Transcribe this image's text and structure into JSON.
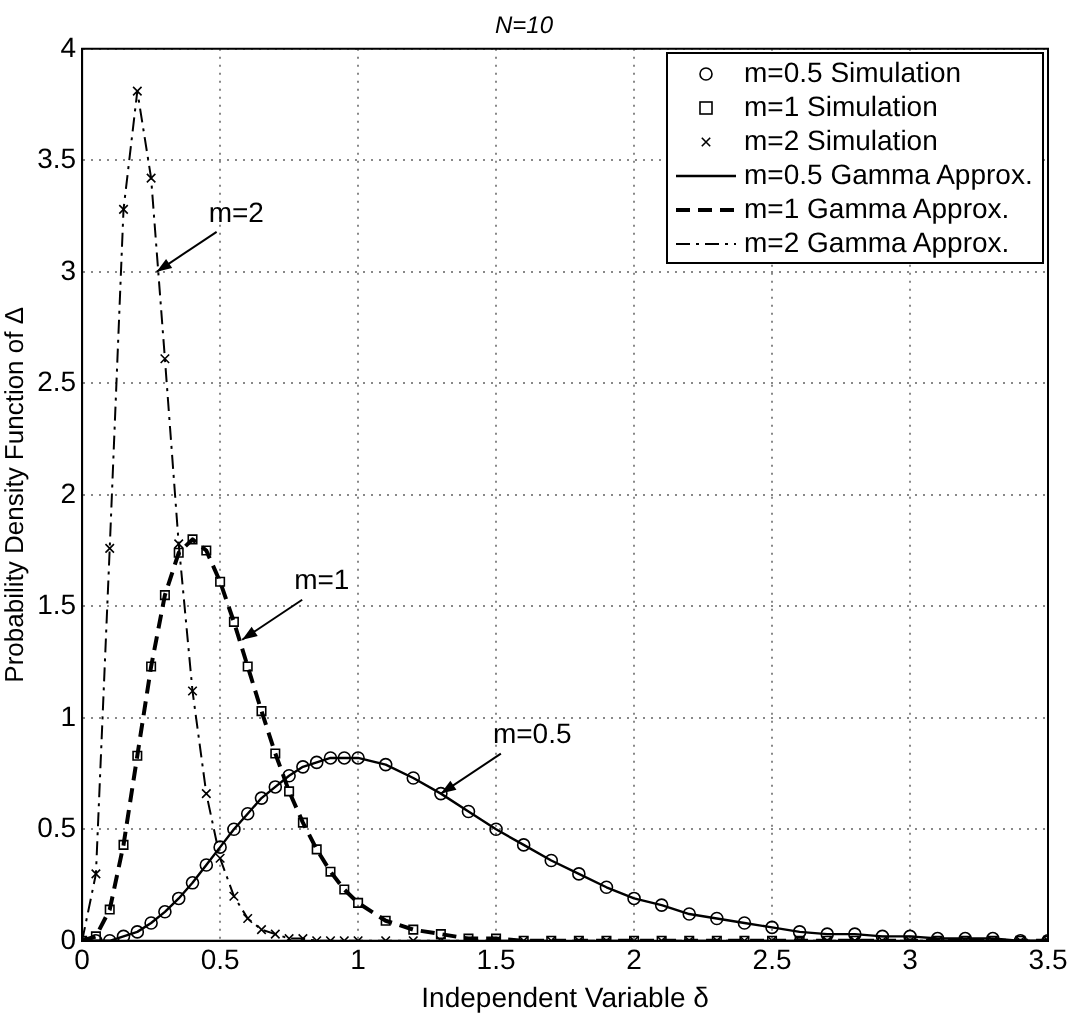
{
  "chart_data": {
    "type": "line",
    "title": "N=10",
    "xlabel": "Independent Variable δ",
    "ylabel": "Probability Density Function of Δ",
    "x": [
      0,
      0.05,
      0.1,
      0.15,
      0.2,
      0.25,
      0.3,
      0.35,
      0.4,
      0.45,
      0.5,
      0.55,
      0.6,
      0.65,
      0.7,
      0.75,
      0.8,
      0.85,
      0.9,
      0.95,
      1.0,
      1.1,
      1.2,
      1.3,
      1.4,
      1.5,
      1.6,
      1.7,
      1.8,
      1.9,
      2.0,
      2.1,
      2.2,
      2.3,
      2.4,
      2.5,
      2.6,
      2.7,
      2.8,
      2.9,
      3.0,
      3.1,
      3.2,
      3.3,
      3.4,
      3.5
    ],
    "series": [
      {
        "name": "m=0.5 Simulation",
        "type": "scatter",
        "marker": "circle",
        "color": "#000000",
        "values": [
          null,
          0,
          0,
          0.02,
          0.04,
          0.08,
          0.13,
          0.19,
          0.26,
          0.34,
          0.42,
          0.5,
          0.57,
          0.64,
          0.69,
          0.74,
          0.78,
          0.8,
          0.82,
          0.82,
          0.82,
          0.79,
          0.73,
          0.66,
          0.58,
          0.5,
          0.43,
          0.36,
          0.3,
          0.24,
          0.19,
          0.16,
          0.12,
          0.1,
          0.08,
          0.06,
          0.04,
          0.03,
          0.03,
          0.02,
          0.02,
          0.01,
          0.01,
          0.01,
          0,
          0
        ]
      },
      {
        "name": "m=1 Simulation",
        "type": "scatter",
        "marker": "square",
        "color": "#000000",
        "values": [
          0,
          0.02,
          0.14,
          0.43,
          0.83,
          1.23,
          1.55,
          1.74,
          1.8,
          1.75,
          1.61,
          1.43,
          1.23,
          1.03,
          0.84,
          0.67,
          0.53,
          0.41,
          0.31,
          0.23,
          0.17,
          0.09,
          0.05,
          0.03,
          0.01,
          0.01,
          0,
          0,
          0,
          0,
          0,
          0,
          0,
          0,
          0,
          0,
          0,
          0,
          0,
          0,
          0,
          0,
          0,
          0,
          0,
          0
        ]
      },
      {
        "name": "m=2 Simulation",
        "type": "scatter",
        "marker": "cross",
        "color": "#000000",
        "values": [
          0,
          0.3,
          1.76,
          3.28,
          3.81,
          3.42,
          2.61,
          1.78,
          1.12,
          0.66,
          0.37,
          0.2,
          0.1,
          0.05,
          0.03,
          0.01,
          0.01,
          0,
          0,
          0,
          0,
          0,
          0,
          0,
          0,
          0,
          0,
          0,
          0,
          0,
          0,
          0,
          0,
          0,
          0,
          0,
          0,
          0,
          0,
          0,
          0,
          0,
          0,
          0,
          0,
          0
        ]
      },
      {
        "name": "m=0.5 Gamma Approx.",
        "line_style": "solid",
        "color": "#000000",
        "values": [
          0,
          0,
          0,
          0.02,
          0.04,
          0.08,
          0.13,
          0.19,
          0.26,
          0.34,
          0.42,
          0.5,
          0.57,
          0.64,
          0.69,
          0.74,
          0.78,
          0.8,
          0.82,
          0.82,
          0.82,
          0.79,
          0.73,
          0.66,
          0.58,
          0.5,
          0.43,
          0.36,
          0.3,
          0.24,
          0.19,
          0.16,
          0.12,
          0.1,
          0.08,
          0.06,
          0.04,
          0.03,
          0.03,
          0.02,
          0.02,
          0.01,
          0.01,
          0.01,
          0,
          0
        ]
      },
      {
        "name": "m=1 Gamma Approx.",
        "line_style": "dashed",
        "color": "#000000",
        "values": [
          0,
          0.02,
          0.14,
          0.43,
          0.83,
          1.23,
          1.55,
          1.74,
          1.8,
          1.75,
          1.61,
          1.43,
          1.23,
          1.03,
          0.84,
          0.67,
          0.53,
          0.41,
          0.31,
          0.23,
          0.17,
          0.09,
          0.05,
          0.03,
          0.01,
          0.01,
          0,
          0,
          0,
          0,
          0,
          0,
          0,
          0,
          0,
          0,
          0,
          0,
          0,
          0,
          0,
          0,
          0,
          0,
          0,
          0
        ]
      },
      {
        "name": "m=2 Gamma Approx.",
        "line_style": "dashdot",
        "color": "#000000",
        "values": [
          0,
          0.3,
          1.76,
          3.28,
          3.81,
          3.42,
          2.61,
          1.78,
          1.12,
          0.66,
          0.37,
          0.2,
          0.1,
          0.05,
          0.03,
          0.01,
          0.01,
          0,
          0,
          0,
          0,
          0,
          0,
          0,
          0,
          0,
          0,
          0,
          0,
          0,
          0,
          0,
          0,
          0,
          0,
          0,
          0,
          0,
          0,
          0,
          0,
          0,
          0,
          0,
          0,
          0
        ]
      }
    ],
    "xlim": [
      0,
      3.5
    ],
    "xticks": [
      0,
      0.5,
      1,
      1.5,
      2,
      2.5,
      3,
      3.5
    ],
    "ylim": [
      0,
      4
    ],
    "yticks": [
      0,
      0.5,
      1,
      1.5,
      2,
      2.5,
      3,
      3.5,
      4
    ],
    "grid": true,
    "legend": "top right",
    "annotations": [
      {
        "text": "m=2",
        "x": 0.27,
        "y": 3.0
      },
      {
        "text": "m=1",
        "x": 0.58,
        "y": 1.35
      },
      {
        "text": "m=0.5",
        "x": 1.3,
        "y": 0.66
      }
    ]
  }
}
